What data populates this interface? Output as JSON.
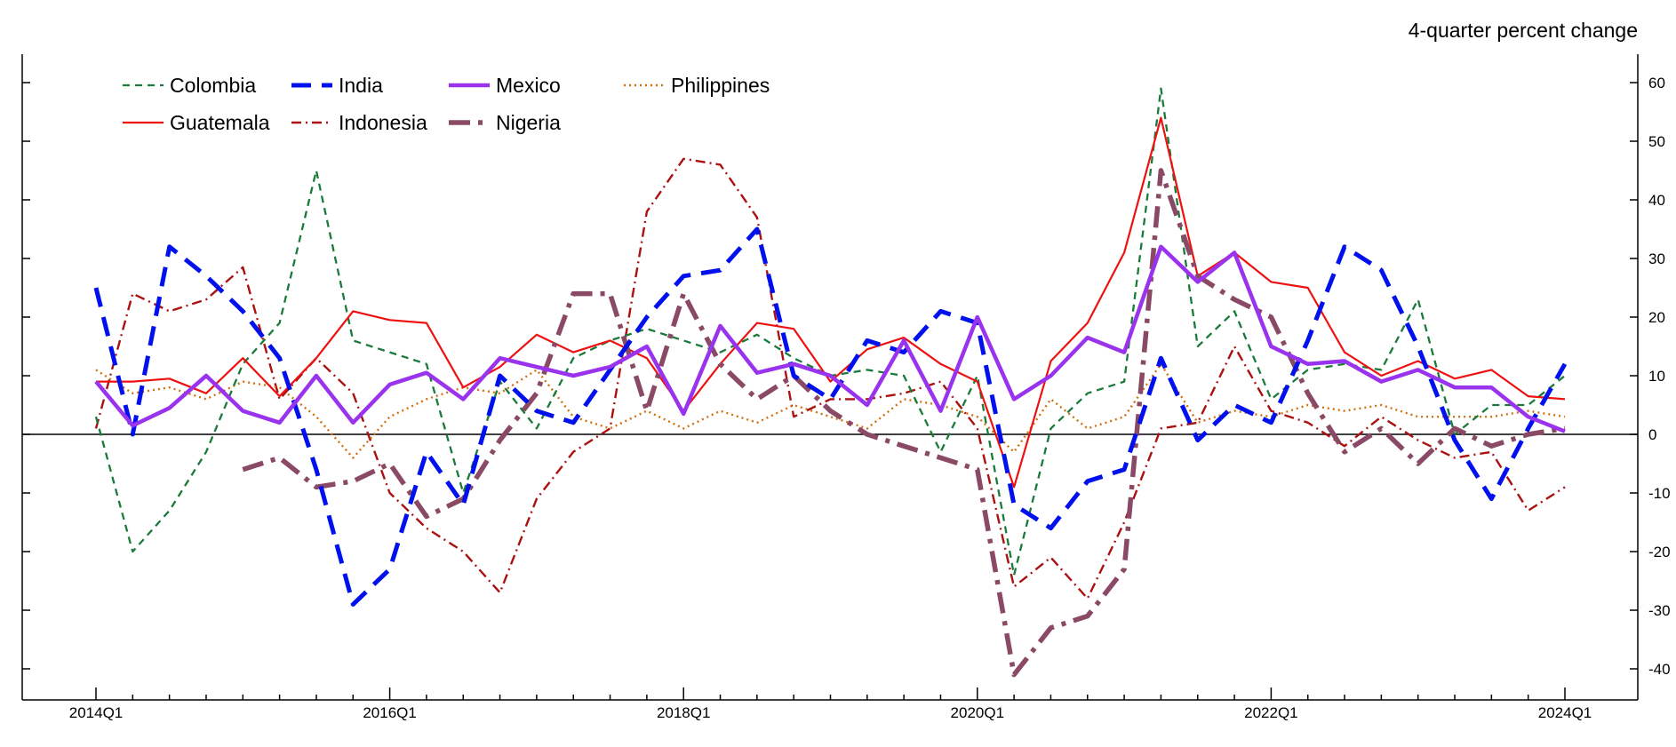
{
  "chart_data": {
    "type": "line",
    "units_label": "4-quarter percent change",
    "x": [
      "2014Q1",
      "2014Q2",
      "2014Q3",
      "2014Q4",
      "2015Q1",
      "2015Q2",
      "2015Q3",
      "2015Q4",
      "2016Q1",
      "2016Q2",
      "2016Q3",
      "2016Q4",
      "2017Q1",
      "2017Q2",
      "2017Q3",
      "2017Q4",
      "2018Q1",
      "2018Q2",
      "2018Q3",
      "2018Q4",
      "2019Q1",
      "2019Q2",
      "2019Q3",
      "2019Q4",
      "2020Q1",
      "2020Q2",
      "2020Q3",
      "2020Q4",
      "2021Q1",
      "2021Q2",
      "2021Q3",
      "2021Q4",
      "2022Q1",
      "2022Q2",
      "2022Q3",
      "2022Q4",
      "2023Q1",
      "2023Q2",
      "2023Q3",
      "2023Q4",
      "2024Q1"
    ],
    "x_tick_labels": [
      "2014Q1",
      "2016Q1",
      "2018Q1",
      "2020Q1",
      "2022Q1",
      "2024Q1"
    ],
    "y_ticks": [
      60,
      50,
      40,
      30,
      20,
      10,
      0,
      -10,
      -20,
      -30,
      -40
    ],
    "ylim": [
      -45,
      65
    ],
    "zero_line": true,
    "y_axis_side": "right",
    "legend_position": "top-left",
    "series": [
      {
        "name": "Colombia",
        "color": "#1a7a3a",
        "style": "dashed-thin",
        "values": [
          3,
          -20,
          -13,
          -3,
          12,
          19,
          45,
          16,
          14,
          12,
          -10,
          9,
          1,
          13,
          16,
          18,
          16,
          14,
          17,
          13,
          10,
          11,
          10,
          -3,
          10,
          -24,
          1,
          7,
          9,
          59,
          15,
          21,
          6,
          11,
          12,
          11,
          23,
          0,
          5,
          5,
          10
        ]
      },
      {
        "name": "India",
        "color": "#0011ee",
        "style": "dashed-thick",
        "values": [
          25,
          0,
          32,
          27,
          21,
          13,
          -6,
          -29,
          -23,
          -3,
          -12,
          10,
          4,
          2,
          11,
          20,
          27,
          28,
          35,
          10,
          6,
          16,
          14,
          21,
          19,
          -12,
          -16,
          -8,
          -6,
          13,
          -1,
          5,
          2,
          16,
          32,
          28,
          15,
          -1,
          -11,
          1,
          12
        ]
      },
      {
        "name": "Mexico",
        "color": "#9933ee",
        "style": "solid-thick",
        "values": [
          9,
          1.5,
          4.5,
          10,
          4,
          2,
          10,
          2,
          8.5,
          10.5,
          6,
          13,
          11.5,
          10,
          11.5,
          15,
          3.5,
          18.5,
          10.5,
          12,
          10,
          5,
          16,
          4,
          20,
          6,
          10,
          16.5,
          14,
          32,
          26,
          31,
          15,
          12,
          12.5,
          9,
          11,
          8,
          8,
          3,
          0.5
        ]
      },
      {
        "name": "Philippines",
        "color": "#d07010",
        "style": "dotted",
        "values": [
          11,
          7,
          8,
          6,
          9,
          8,
          3,
          -4,
          3,
          6,
          8,
          7,
          11,
          3,
          1,
          4,
          1,
          4,
          2,
          5,
          3,
          1,
          6,
          5,
          3,
          -3,
          6,
          1,
          3,
          12,
          2,
          4,
          3,
          5,
          4,
          5,
          3,
          3,
          3,
          4,
          3
        ]
      },
      {
        "name": "Guatemala",
        "color": "#ee1111",
        "style": "solid",
        "values": [
          9,
          9,
          9.5,
          7,
          13,
          6.5,
          13,
          21,
          19.5,
          19,
          8,
          11.5,
          17,
          14,
          16,
          13,
          4,
          12,
          19,
          18,
          9,
          14.5,
          16.5,
          12,
          9,
          -9,
          12.5,
          19,
          31,
          54,
          27,
          31,
          26,
          25,
          14,
          10,
          12.5,
          9.5,
          11,
          6.5,
          6
        ]
      },
      {
        "name": "Indonesia",
        "color": "#aa1111",
        "style": "dash-dot-thin",
        "values": [
          1,
          24,
          21,
          23,
          28.5,
          6,
          13,
          7,
          -10,
          -16,
          -20,
          -27,
          -11,
          -3,
          1,
          38,
          47,
          46,
          37,
          3,
          6,
          6,
          7,
          9,
          1,
          -26,
          -21,
          -28,
          -15,
          1,
          2,
          15,
          4,
          2,
          -2,
          3,
          -1,
          -4,
          -3,
          -13,
          -9
        ]
      },
      {
        "name": "Nigeria",
        "color": "#8a4a66",
        "style": "dash-dot-thick",
        "values": [
          null,
          null,
          null,
          null,
          -6,
          -4,
          -9,
          -8,
          -5,
          -14,
          -11,
          -1,
          7,
          24,
          24,
          4,
          24,
          12,
          6,
          10,
          4,
          0,
          -2,
          -4,
          -6,
          -41,
          -33,
          -31,
          -23,
          45,
          27,
          23,
          20,
          7,
          -3,
          1,
          -5,
          1,
          -2,
          0,
          1
        ]
      }
    ]
  }
}
